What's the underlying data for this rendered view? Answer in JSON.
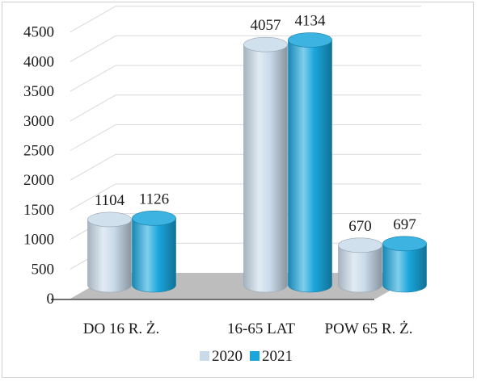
{
  "chart_data": {
    "type": "bar",
    "style": "3d-cylinder",
    "categories": [
      "DO 16 R. Ż.",
      "16-65 LAT",
      "POW 65 R. Ż."
    ],
    "series": [
      {
        "name": "2020",
        "values": [
          1104,
          4057,
          670
        ],
        "color": "#c9daea"
      },
      {
        "name": "2021",
        "values": [
          1126,
          4134,
          697
        ],
        "color": "#1aa6dc"
      }
    ],
    "yticks": [
      0,
      500,
      1000,
      1500,
      2000,
      2500,
      3000,
      3500,
      4000,
      4500
    ],
    "ylim": [
      0,
      4500
    ],
    "grid": true,
    "legend": "bottom",
    "colors": {
      "floor": "#bdbdbd",
      "grid": "#d9d9d9",
      "frame": "#d0d0d0"
    }
  }
}
